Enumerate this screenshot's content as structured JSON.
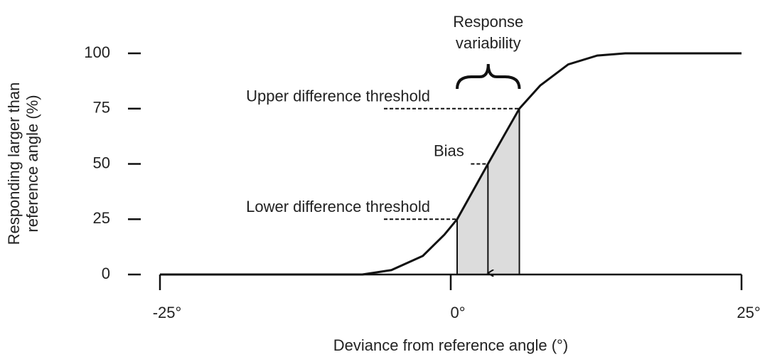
{
  "chart_data": {
    "type": "line",
    "x_label": "Deviance from reference angle (°)",
    "y_label": [
      "Responding larger than",
      "reference angle (%)"
    ],
    "xlim": [
      -25,
      25
    ],
    "ylim": [
      0,
      100
    ],
    "xticks": [
      {
        "value": -25,
        "label": "-25°"
      },
      {
        "value": 0,
        "label": "0°"
      },
      {
        "value": 25,
        "label": "25°"
      }
    ],
    "yticks": [
      0,
      25,
      50,
      75,
      100
    ],
    "series": [
      {
        "color": "#111111",
        "x": [
          -25,
          -7.6,
          -5.1,
          -2.4,
          -0.55,
          0.55,
          3.2,
          4.6,
          5.9,
          7.7,
          10.1,
          12.6,
          15,
          25
        ],
        "values": [
          0,
          0,
          2,
          8.4,
          18,
          25,
          50,
          63,
          75,
          85.5,
          95,
          99,
          100,
          100
        ]
      }
    ],
    "shade_color": "#dcdcdc",
    "annotations": {
      "lower": {
        "text": "Lower difference threshold",
        "x": 0.55,
        "y": 25
      },
      "bias": {
        "text": "Bias",
        "x": 3.2,
        "y": 50
      },
      "upper": {
        "text": "Upper difference threshold",
        "x": 5.9,
        "y": 75
      },
      "variability": [
        "Response",
        "variability"
      ]
    }
  }
}
